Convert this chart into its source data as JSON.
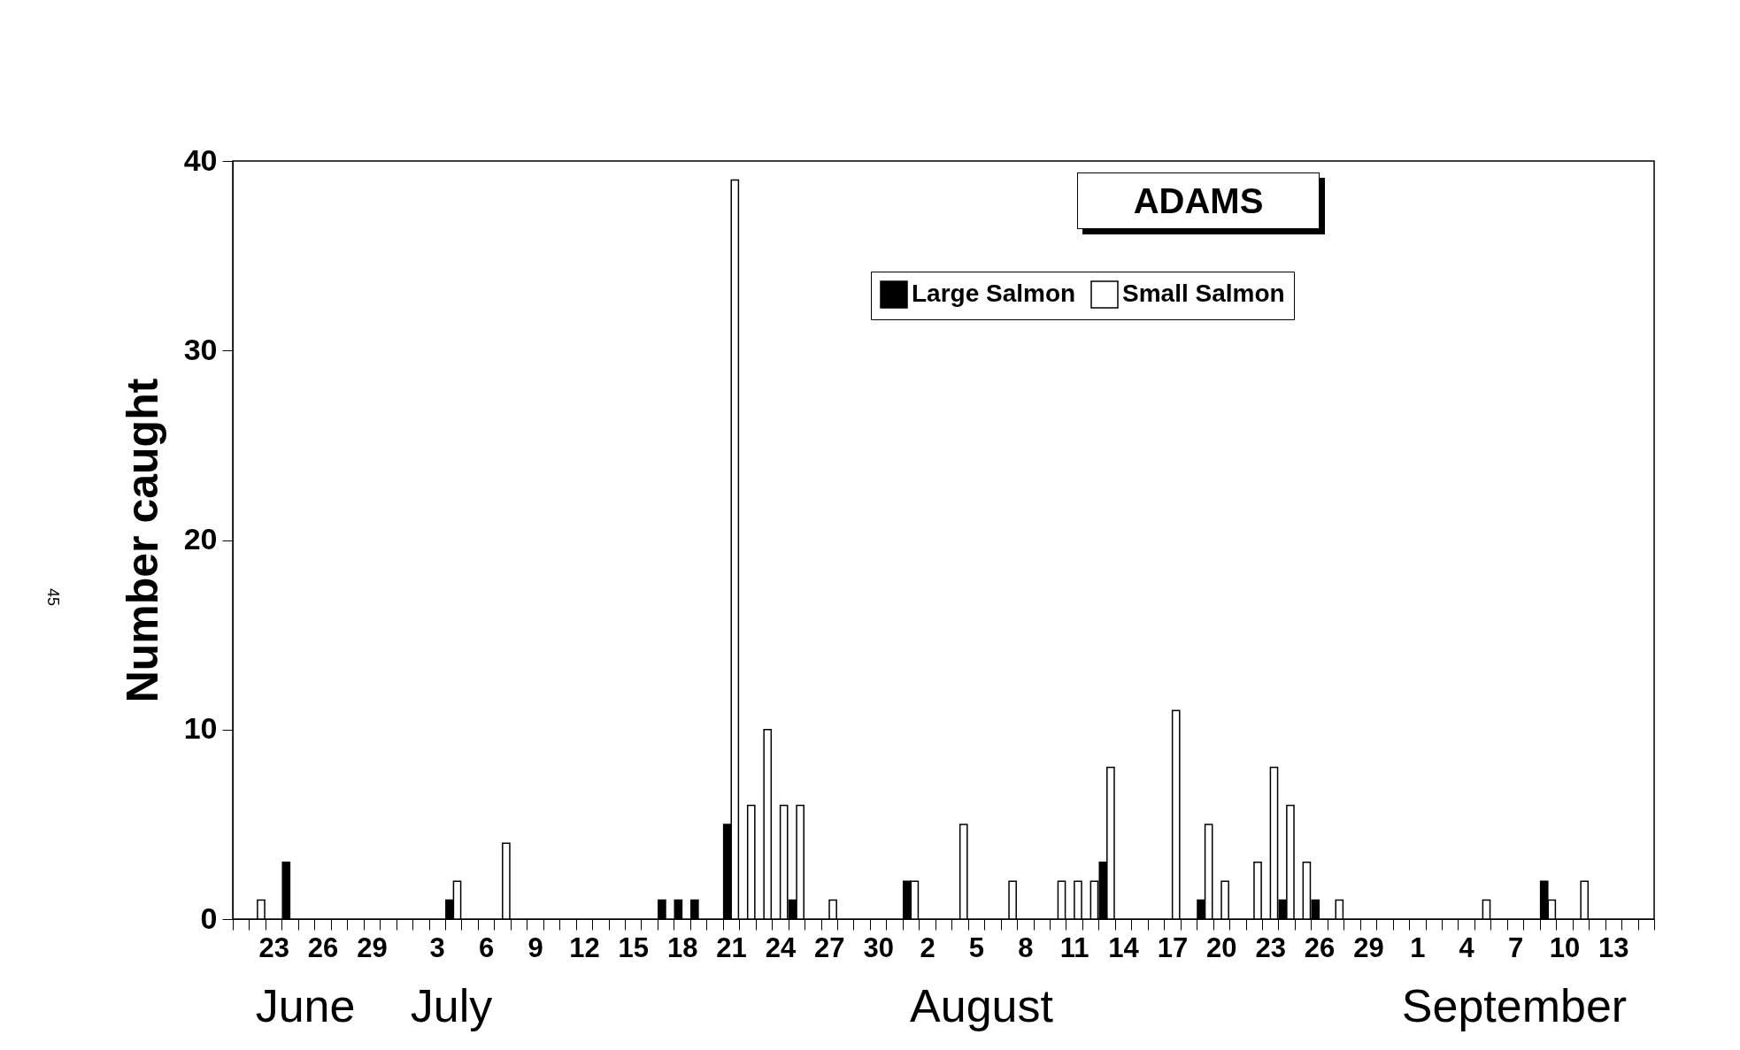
{
  "chart_data": {
    "type": "bar",
    "title": "ADAMS",
    "ylabel": "Number caught",
    "annotations": [
      "45",
      "June",
      "July",
      "August",
      "September"
    ],
    "categories": [
      null,
      null,
      "23",
      null,
      null,
      "26",
      null,
      null,
      "29",
      null,
      null,
      null,
      "3",
      null,
      null,
      "6",
      null,
      null,
      "9",
      null,
      null,
      "12",
      null,
      null,
      "15",
      null,
      null,
      "18",
      null,
      null,
      "21",
      null,
      null,
      "24",
      null,
      null,
      "27",
      null,
      null,
      "30",
      null,
      null,
      "2",
      null,
      null,
      "5",
      null,
      null,
      "8",
      null,
      null,
      "11",
      null,
      null,
      "14",
      null,
      null,
      "17",
      null,
      null,
      "20",
      null,
      null,
      "23",
      null,
      null,
      "26",
      null,
      null,
      "29",
      null,
      null,
      "1",
      null,
      null,
      "4",
      null,
      null,
      "7",
      null,
      null,
      "10",
      null,
      null,
      "13",
      null,
      null
    ],
    "series": [
      {
        "name": "Large Salmon",
        "color": "#000000",
        "values": [
          0,
          0,
          0,
          3,
          0,
          0,
          0,
          0,
          0,
          0,
          0,
          0,
          0,
          1,
          0,
          0,
          0,
          0,
          0,
          0,
          0,
          0,
          0,
          0,
          0,
          0,
          1,
          1,
          1,
          0,
          5,
          0,
          0,
          0,
          1,
          0,
          0,
          0,
          0,
          0,
          0,
          2,
          0,
          0,
          0,
          0,
          0,
          0,
          0,
          0,
          0,
          0,
          0,
          3,
          0,
          0,
          0,
          0,
          0,
          1,
          0,
          0,
          0,
          0,
          1,
          0,
          1,
          0,
          0,
          0,
          0,
          0,
          0,
          0,
          0,
          0,
          0,
          0,
          0,
          0,
          2,
          0,
          0,
          0,
          0,
          0,
          0
        ]
      },
      {
        "name": "Small Salmon",
        "color": "#ffffff",
        "values": [
          0,
          1,
          0,
          0,
          0,
          0,
          0,
          0,
          0,
          0,
          0,
          0,
          0,
          2,
          0,
          0,
          4,
          0,
          0,
          0,
          0,
          0,
          0,
          0,
          0,
          0,
          0,
          0,
          0,
          0,
          39,
          6,
          10,
          6,
          6,
          0,
          1,
          0,
          0,
          0,
          0,
          2,
          0,
          0,
          5,
          0,
          0,
          2,
          0,
          0,
          2,
          2,
          2,
          8,
          0,
          0,
          0,
          11,
          0,
          5,
          2,
          0,
          3,
          8,
          6,
          3,
          0,
          1,
          0,
          0,
          0,
          0,
          0,
          0,
          0,
          0,
          1,
          0,
          0,
          0,
          1,
          0,
          2,
          0,
          0,
          0,
          0
        ]
      }
    ],
    "ylim": [
      0,
      40
    ],
    "yticks": [
      0,
      10,
      20,
      30,
      40
    ],
    "legend": "top right"
  }
}
